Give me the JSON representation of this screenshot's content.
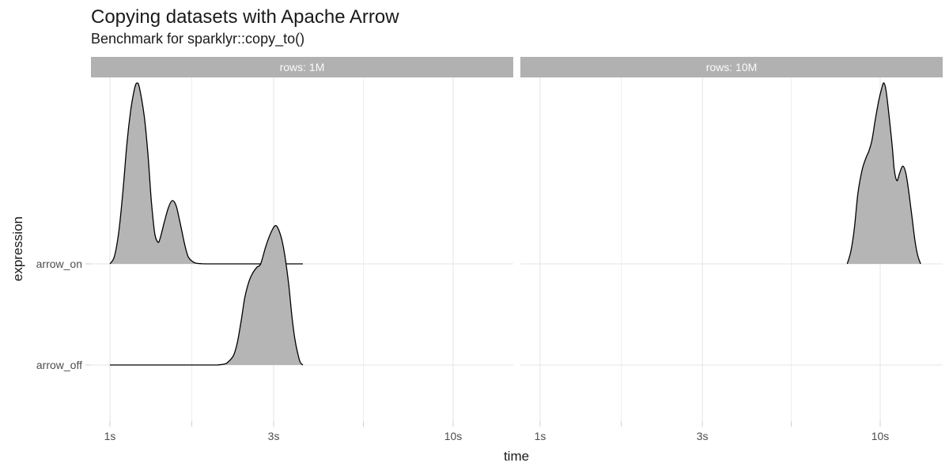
{
  "title": "Copying datasets with Apache Arrow",
  "subtitle": "Benchmark for sparklyr::copy_to()",
  "axes": {
    "x_label": "time",
    "y_label": "expression",
    "x_tick_labels": [
      "1s",
      "3s",
      "10s"
    ],
    "y_tick_labels": [
      "arrow_on",
      "arrow_off"
    ]
  },
  "colors": {
    "ridge_fill": "#b5b5b5",
    "ridge_stroke": "#000000",
    "strip_bg": "#b1b1b1",
    "strip_text": "#fafafa",
    "grid_major": "#e4e4e4",
    "grid_minor": "#efefef",
    "tick_mark": "#cfcfcf",
    "axis_text": "#4d4d4d",
    "title_text": "#1a1a1a"
  },
  "chart_data": {
    "type": "area",
    "subtype": "density-ridgeline",
    "x_scale": "log10",
    "x_unit": "seconds",
    "x_breaks": [
      1,
      3,
      10
    ],
    "x_minor_breaks": [
      1.732,
      5.477
    ],
    "x_range": [
      0.88,
      15.2
    ],
    "y_categories_top_to_bottom": [
      "arrow_on",
      "arrow_off"
    ],
    "density_note": "heights relative to tallest peak (=1.0)",
    "facets": [
      {
        "label": "rows: 1M",
        "series": [
          {
            "name": "arrow_on",
            "points": [
              [
                1.0,
                0
              ],
              [
                1.03,
                0.04
              ],
              [
                1.06,
                0.17
              ],
              [
                1.09,
                0.39
              ],
              [
                1.12,
                0.66
              ],
              [
                1.15,
                0.85
              ],
              [
                1.18,
                0.97
              ],
              [
                1.2,
                1.0
              ],
              [
                1.22,
                0.97
              ],
              [
                1.26,
                0.81
              ],
              [
                1.29,
                0.61
              ],
              [
                1.32,
                0.35
              ],
              [
                1.35,
                0.17
              ],
              [
                1.38,
                0.12
              ],
              [
                1.4,
                0.14
              ],
              [
                1.44,
                0.23
              ],
              [
                1.48,
                0.31
              ],
              [
                1.52,
                0.35
              ],
              [
                1.56,
                0.32
              ],
              [
                1.6,
                0.23
              ],
              [
                1.65,
                0.11
              ],
              [
                1.69,
                0.04
              ],
              [
                1.74,
                0.013
              ],
              [
                1.78,
                0.004
              ],
              [
                1.85,
                0.001
              ],
              [
                1.95,
                0
              ],
              [
                2.2,
                0
              ],
              [
                2.6,
                0
              ],
              [
                3.0,
                0
              ],
              [
                3.3,
                0
              ],
              [
                3.65,
                0
              ]
            ]
          },
          {
            "name": "arrow_off",
            "points": [
              [
                1.0,
                0
              ],
              [
                1.3,
                0
              ],
              [
                1.6,
                0
              ],
              [
                1.9,
                0
              ],
              [
                2.05,
                0
              ],
              [
                2.15,
                0.005
              ],
              [
                2.2,
                0.013
              ],
              [
                2.29,
                0.052
              ],
              [
                2.35,
                0.122
              ],
              [
                2.41,
                0.24
              ],
              [
                2.47,
                0.37
              ],
              [
                2.54,
                0.46
              ],
              [
                2.61,
                0.51
              ],
              [
                2.68,
                0.54
              ],
              [
                2.75,
                0.56
              ],
              [
                2.85,
                0.66
              ],
              [
                2.96,
                0.74
              ],
              [
                3.05,
                0.77
              ],
              [
                3.15,
                0.71
              ],
              [
                3.23,
                0.61
              ],
              [
                3.32,
                0.44
              ],
              [
                3.39,
                0.27
              ],
              [
                3.46,
                0.14
              ],
              [
                3.54,
                0.05
              ],
              [
                3.59,
                0.013
              ],
              [
                3.65,
                0
              ]
            ]
          }
        ]
      },
      {
        "label": "rows: 10M",
        "series": [
          {
            "name": "arrow_on",
            "points": [
              [
                8.0,
                0
              ],
              [
                8.2,
                0.07
              ],
              [
                8.4,
                0.2
              ],
              [
                8.6,
                0.39
              ],
              [
                8.85,
                0.52
              ],
              [
                9.1,
                0.59
              ],
              [
                9.25,
                0.62
              ],
              [
                9.45,
                0.68
              ],
              [
                9.66,
                0.79
              ],
              [
                9.87,
                0.89
              ],
              [
                10.1,
                0.97
              ],
              [
                10.25,
                1.0
              ],
              [
                10.4,
                0.96
              ],
              [
                10.6,
                0.83
              ],
              [
                10.85,
                0.65
              ],
              [
                11.0,
                0.52
              ],
              [
                11.2,
                0.46
              ],
              [
                11.4,
                0.5
              ],
              [
                11.65,
                0.54
              ],
              [
                11.9,
                0.5
              ],
              [
                12.15,
                0.39
              ],
              [
                12.4,
                0.26
              ],
              [
                12.65,
                0.13
              ],
              [
                12.9,
                0.044
              ],
              [
                13.15,
                0
              ]
            ]
          }
        ]
      }
    ]
  }
}
